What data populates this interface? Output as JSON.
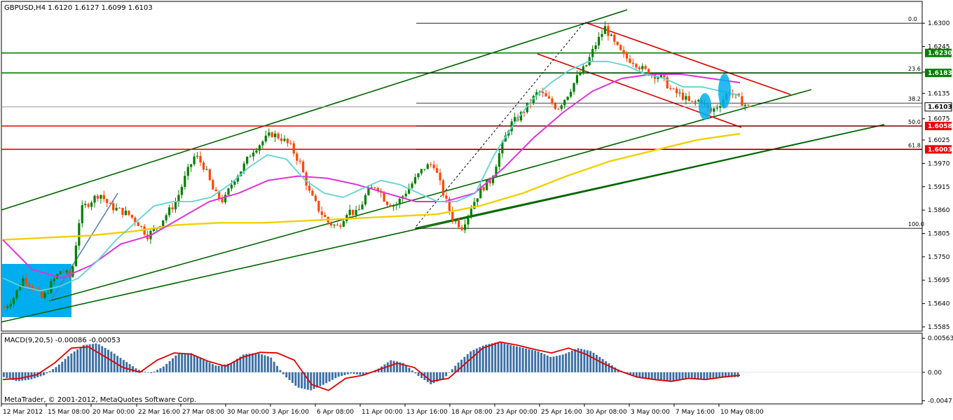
{
  "header": {
    "symbol_tf": "GBPUSD,H4",
    "ohlc": "1.6120 1.6127 1.6099 1.6103"
  },
  "macd_header": {
    "label": "MACD(9,20,5) -0.00086 -0.00053"
  },
  "copyright": "MetaTrader, © 2001-2012, MetaQuotes Software Corp.",
  "colors": {
    "background": "#ffffff",
    "bull_candle": "#008000",
    "bear_candle": "#ff4500",
    "ma_fast": "#5fd3d3",
    "ma_mid": "#dd33dd",
    "ma_slow": "#f0d000",
    "channel_green": "#006400",
    "channel_red": "#dd0000",
    "hline_green": "#008000",
    "hline_red": "#ee0000",
    "fib_line": "#000000",
    "highlight_box": "#00aeef",
    "macd_hist": "#3a6ea5",
    "macd_signal": "#dd0000"
  },
  "chart_data": [
    {
      "type": "candlestick",
      "title": "GBPUSD,H4",
      "y_ticks": [
        "1.6300",
        "1.6245",
        "1.6185",
        "1.6135",
        "1.6075",
        "1.6025",
        "1.5970",
        "1.5915",
        "1.5860",
        "1.5805",
        "1.5750",
        "1.5695",
        "1.5640",
        "1.5585"
      ],
      "ylim": [
        1.558,
        1.6325
      ],
      "x_ticks": [
        "12 Mar 2012",
        "15 Mar 08:00",
        "20 Mar 00:00",
        "22 Mar 16:00",
        "27 Mar 08:00",
        "30 Mar 00:00",
        "3 Apr 16:00",
        "6 Apr 08:00",
        "11 Apr 00:00",
        "13 Apr 16:00",
        "18 Apr 08:00",
        "23 Apr 00:00",
        "25 Apr 16:00",
        "30 Apr 08:00",
        "3 May 00:00",
        "7 May 16:00",
        "10 May 08:00"
      ],
      "price_levels": [
        {
          "label": "1.6230",
          "value": 1.623,
          "color": "#008000"
        },
        {
          "label": "1.6183",
          "value": 1.6183,
          "color": "#008000"
        },
        {
          "label": "1.6103",
          "value": 1.6103,
          "color": "#000000"
        },
        {
          "label": "1.6058",
          "value": 1.6058,
          "color": "#ee0000"
        },
        {
          "label": "1.6003",
          "value": 1.6003,
          "color": "#ee0000"
        }
      ],
      "fibonacci": [
        {
          "label": "0.0",
          "value": 1.63
        },
        {
          "label": "23.6",
          "value": 1.6183
        },
        {
          "label": "38.2",
          "value": 1.6112
        },
        {
          "label": "50.0",
          "value": 1.6058
        },
        {
          "label": "61.8",
          "value": 1.6003
        },
        {
          "label": "100.0",
          "value": 1.5817
        }
      ],
      "closes": [
        1.563,
        1.5655,
        1.57,
        1.568,
        1.565,
        1.569,
        1.572,
        1.57,
        1.586,
        1.588,
        1.59,
        1.587,
        1.586,
        1.585,
        1.583,
        1.58,
        1.582,
        1.585,
        1.588,
        1.594,
        1.599,
        1.596,
        1.59,
        1.588,
        1.593,
        1.596,
        1.6,
        1.602,
        1.604,
        1.603,
        1.601,
        1.597,
        1.59,
        1.586,
        1.583,
        1.582,
        1.586,
        1.585,
        1.59,
        1.592,
        1.588,
        1.587,
        1.59,
        1.593,
        1.596,
        1.597,
        1.59,
        1.584,
        1.582,
        1.587,
        1.591,
        1.593,
        1.6,
        1.606,
        1.608,
        1.611,
        1.614,
        1.612,
        1.61,
        1.613,
        1.617,
        1.62,
        1.625,
        1.629,
        1.625,
        1.622,
        1.621,
        1.619,
        1.618,
        1.617,
        1.614,
        1.613,
        1.611,
        1.612,
        1.609,
        1.611,
        1.614,
        1.612,
        1.6103
      ],
      "ma_fast": [
        1.57,
        1.568,
        1.567,
        1.568,
        1.57,
        1.574,
        1.579,
        1.583,
        1.587,
        1.588,
        1.588,
        1.589,
        1.592,
        1.596,
        1.599,
        1.598,
        1.593,
        1.59,
        1.589,
        1.591,
        1.593,
        1.592,
        1.59,
        1.588,
        1.588,
        1.59,
        1.599,
        1.606,
        1.612,
        1.616,
        1.619,
        1.621,
        1.621,
        1.62,
        1.618,
        1.617,
        1.615,
        1.615,
        1.614,
        1.613
      ],
      "ma_mid": [
        1.579,
        1.572,
        1.57,
        1.573,
        1.578,
        1.58,
        1.584,
        1.588,
        1.59,
        1.593,
        1.594,
        1.5935,
        1.592,
        1.59,
        1.588,
        1.588,
        1.59,
        1.596,
        1.603,
        1.609,
        1.614,
        1.617,
        1.618,
        1.618,
        1.617,
        1.616
      ],
      "ma_slow": [
        1.579,
        1.5795,
        1.58,
        1.581,
        1.5825,
        1.583,
        1.583,
        1.5835,
        1.584,
        1.5845,
        1.585,
        1.587,
        1.59,
        1.594,
        1.5975,
        1.6,
        1.6025,
        1.604
      ]
    },
    {
      "type": "histogram",
      "title": "MACD(9,20,5)",
      "y_ticks": [
        "0.00563",
        "0.00",
        "-0.00471"
      ],
      "ylim": [
        -0.005,
        0.006
      ],
      "histogram": [
        -0.0008,
        -0.0015,
        -0.0012,
        -0.0005,
        0.001,
        0.003,
        0.0045,
        0.0048,
        0.0035,
        0.002,
        0.0005,
        -0.0002,
        0.001,
        0.003,
        0.0032,
        0.002,
        0.001,
        0.0015,
        0.003,
        0.0032,
        0.0025,
        -0.0005,
        -0.0025,
        -0.003,
        -0.002,
        -0.0008,
        -0.0002,
        -0.0005,
        0.0005,
        0.002,
        0.0015,
        -0.0005,
        -0.002,
        -0.001,
        0.0015,
        0.0035,
        0.0045,
        0.005,
        0.0045,
        0.004,
        0.0035,
        0.0025,
        0.003,
        0.004,
        0.0035,
        0.002,
        0.0005,
        -0.0005,
        -0.001,
        -0.0012,
        -0.0015,
        -0.001,
        -0.0012,
        -0.001,
        -0.0008,
        -0.0008
      ],
      "signal": [
        -0.0012,
        -0.001,
        -0.0004,
        0.0015,
        0.004,
        0.0042,
        0.0025,
        0.0008,
        0.0,
        0.002,
        0.0032,
        0.003,
        0.0018,
        0.001,
        0.0025,
        0.0033,
        0.0032,
        0.002,
        -0.002,
        -0.003,
        -0.001,
        -0.0005,
        0.0005,
        0.0015,
        0.0008,
        -0.0015,
        -0.001,
        0.0015,
        0.004,
        0.005,
        0.0045,
        0.0038,
        0.0032,
        0.004,
        0.003,
        0.0015,
        0.0002,
        -0.0008,
        -0.0012,
        -0.0015,
        -0.001,
        -0.0012,
        -0.0008,
        -0.0005
      ]
    }
  ]
}
